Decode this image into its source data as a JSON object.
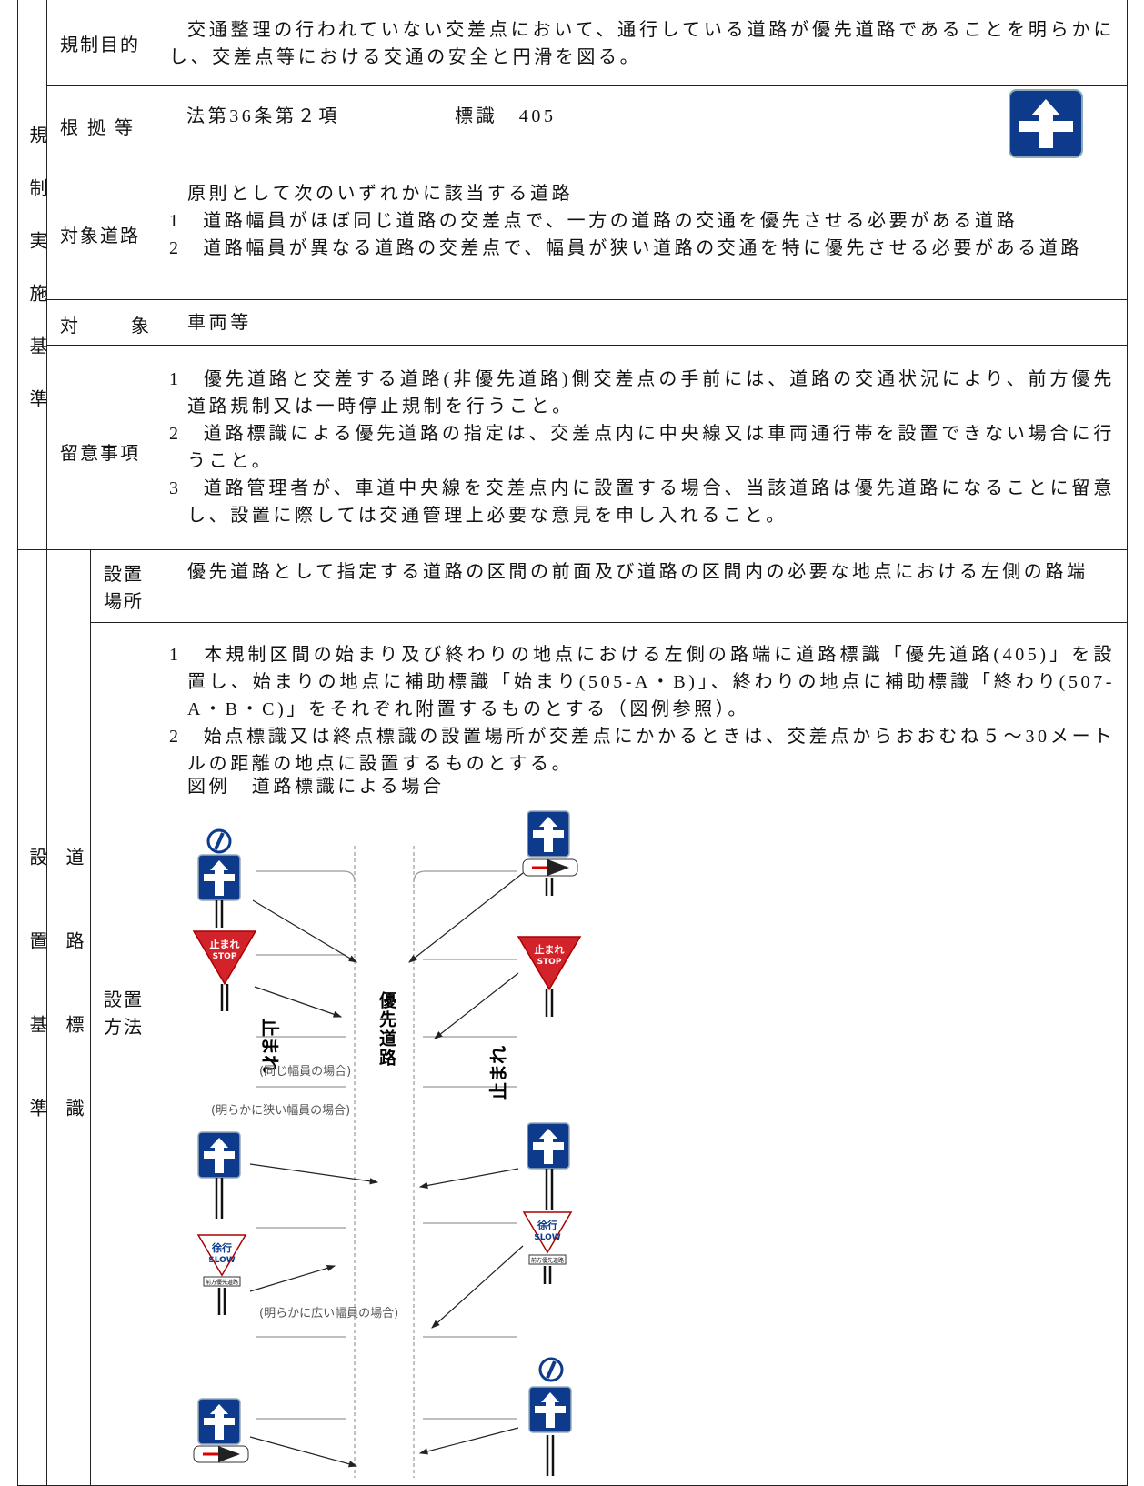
{
  "regulation": {
    "side_label": "規制実施基準",
    "purpose": {
      "label": "規制目的",
      "text": "交通整理の行われていない交差点において、通行している道路が優先道路であることを明らかにし、交差点等における交通の安全と円滑を図る。"
    },
    "basis": {
      "label": "根拠等",
      "law": "法第36条第２項",
      "sign": "標識　405"
    },
    "roads": {
      "label": "対象道路",
      "intro": "原則として次のいずれかに該当する道路",
      "items": [
        "1　道路幅員がほぼ同じ道路の交差点で、一方の道路の交通を優先させる必要がある道路",
        "2　道路幅員が異なる道路の交差点で、幅員が狭い道路の交通を特に優先させる必要がある道路"
      ]
    },
    "target": {
      "label": "対象",
      "text": "車両等"
    },
    "notes": {
      "label": "留意事項",
      "items": [
        "1　優先道路と交差する道路(非優先道路)側交差点の手前には、道路の交通状況により、前方優先道路規制又は一時停止規制を行うこと。",
        "2　道路標識による優先道路の指定は、交差点内に中央線又は車両通行帯を設置できない場合に行うこと。",
        "3　道路管理者が、車道中央線を交差点内に設置する場合、当該道路は優先道路になることに留意し、設置に際しては交通管理上必要な意見を申し入れること。"
      ]
    }
  },
  "installation": {
    "side_label": "設置基準",
    "sub_label": "道路標識",
    "location": {
      "label": "設置場所",
      "text": "優先道路として指定する道路の区間の前面及び道路の区間内の必要な地点における左側の路端"
    },
    "method": {
      "label": "設置方法",
      "items": [
        "1　本規制区間の始まり及び終わりの地点における左側の路端に道路標識「優先道路(405)」を設置し、始まりの地点に補助標識「始まり(505-A・B)」、終わりの地点に補助標識「終わり(507-A・B・C)」をそれぞれ附置するものとする（図例参照）。",
        "2　始点標識又は終点標識の設置場所が交差点にかかるときは、交差点からおおむね５～30メートルの距離の地点に設置するものとする。"
      ],
      "figure_title": "図例　道路標識による場合"
    }
  },
  "diagram": {
    "road_label": "優先道路",
    "stop_marking": "止まれ",
    "case_same": "(同じ幅員の場合)",
    "case_narrow": "(明らかに狭い幅員の場合)",
    "case_wide": "(明らかに広い幅員の場合)",
    "stop_sign": [
      "止まれ",
      "STOP"
    ],
    "slow_sign": [
      "徐行",
      "SLOW"
    ],
    "slow_plate": "前方優先道路"
  }
}
